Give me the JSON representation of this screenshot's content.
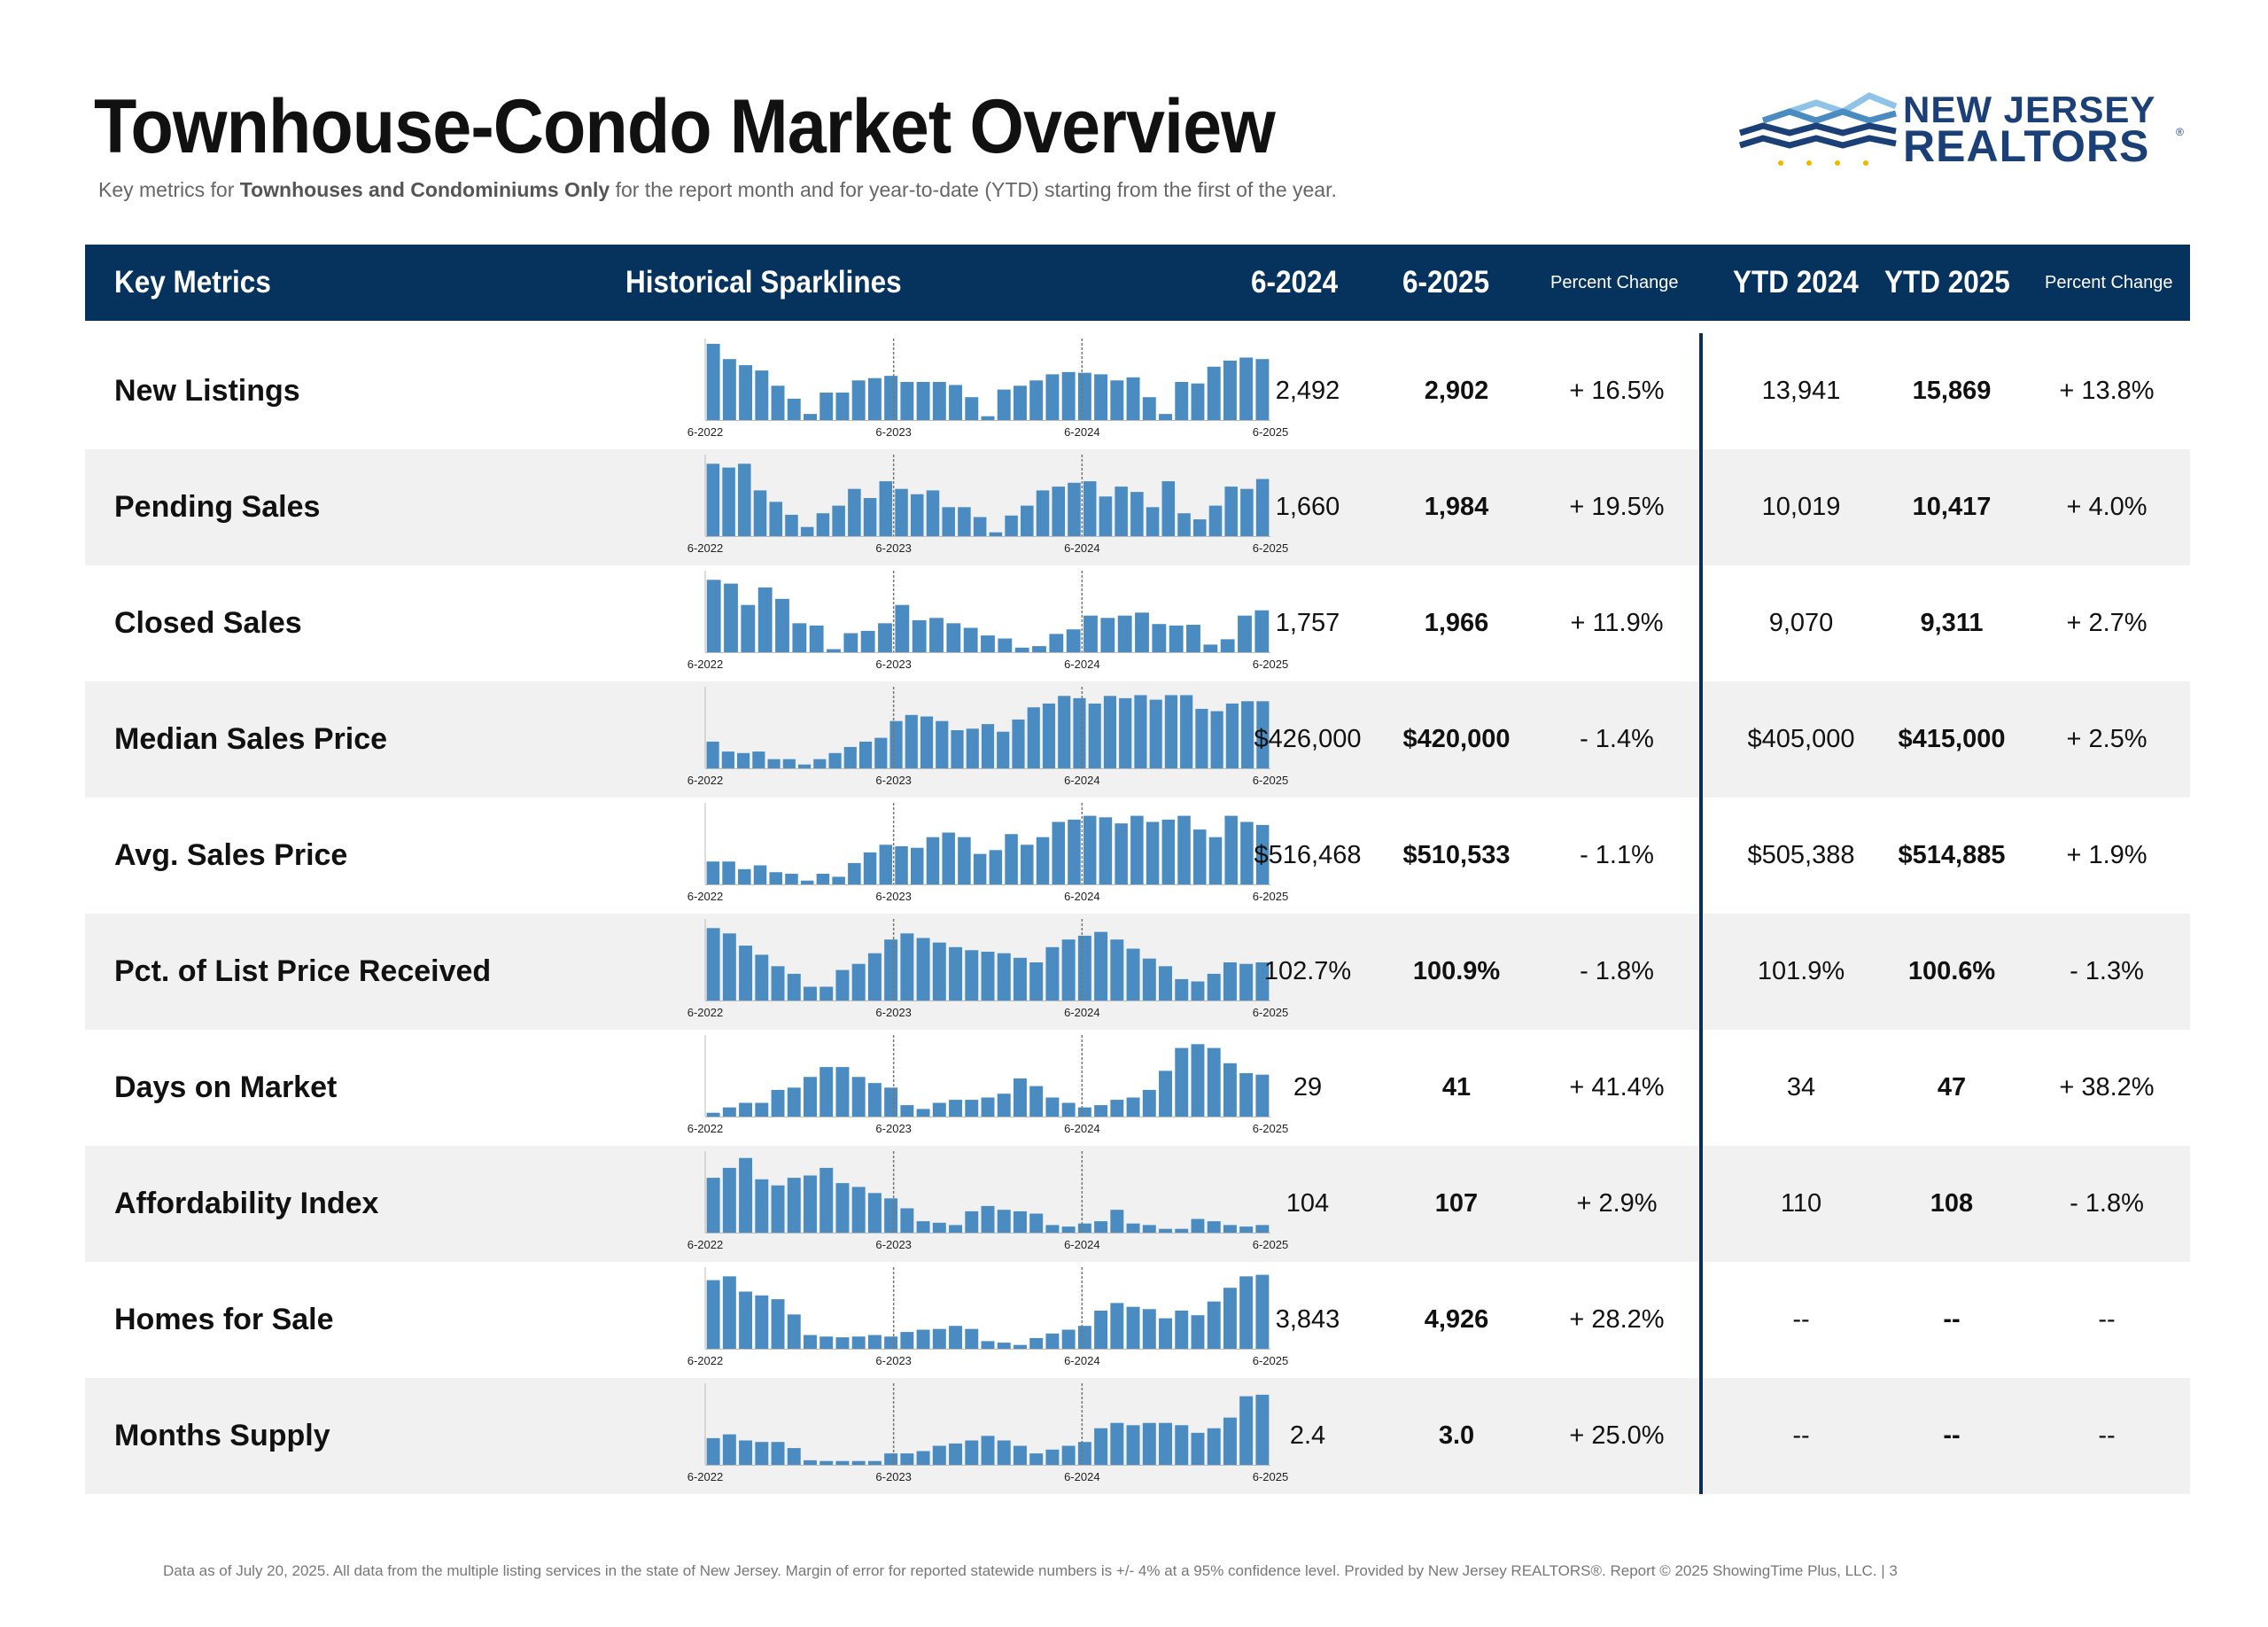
{
  "title": "Townhouse-Condo Market Overview",
  "subtitle": {
    "pre": "Key metrics for ",
    "bold": "Townhouses and Condominiums Only",
    "post": " for the report month and for year-to-date (YTD) starting from the first of the year."
  },
  "logo": {
    "line1": "NEW JERSEY",
    "line2": "REALTORS",
    "reg": "®"
  },
  "colors": {
    "header_bg": "#06325e",
    "bar": "#4a8cc2",
    "row_shade": "#f1f1f1",
    "divider": "#0d2f57"
  },
  "header": {
    "key_metrics": "Key Metrics",
    "sparklines": "Historical Sparklines",
    "m_2024": "6-2024",
    "m_2025": "6-2025",
    "pct_change": "Percent Change",
    "ytd_2024": "YTD 2024",
    "ytd_2025": "YTD 2025",
    "ytd_pct_change": "Percent Change"
  },
  "rows": [
    {
      "name": "New Listings",
      "m2024": "2,492",
      "m2025": "2,902",
      "pct": "+ 16.5%",
      "ytd2024": "13,941",
      "ytd2025": "15,869",
      "ytd_pct": "+ 13.8%"
    },
    {
      "name": "Pending Sales",
      "m2024": "1,660",
      "m2025": "1,984",
      "pct": "+ 19.5%",
      "ytd2024": "10,019",
      "ytd2025": "10,417",
      "ytd_pct": "+ 4.0%"
    },
    {
      "name": "Closed Sales",
      "m2024": "1,757",
      "m2025": "1,966",
      "pct": "+ 11.9%",
      "ytd2024": "9,070",
      "ytd2025": "9,311",
      "ytd_pct": "+ 2.7%"
    },
    {
      "name": "Median Sales Price",
      "m2024": "$426,000",
      "m2025": "$420,000",
      "pct": "- 1.4%",
      "ytd2024": "$405,000",
      "ytd2025": "$415,000",
      "ytd_pct": "+ 2.5%"
    },
    {
      "name": "Avg. Sales Price",
      "m2024": "$516,468",
      "m2025": "$510,533",
      "pct": "- 1.1%",
      "ytd2024": "$505,388",
      "ytd2025": "$514,885",
      "ytd_pct": "+ 1.9%"
    },
    {
      "name": "Pct. of List Price Received",
      "m2024": "102.7%",
      "m2025": "100.9%",
      "pct": "- 1.8%",
      "ytd2024": "101.9%",
      "ytd2025": "100.6%",
      "ytd_pct": "- 1.3%"
    },
    {
      "name": "Days on Market",
      "m2024": "29",
      "m2025": "41",
      "pct": "+ 41.4%",
      "ytd2024": "34",
      "ytd2025": "47",
      "ytd_pct": "+ 38.2%"
    },
    {
      "name": "Affordability Index",
      "m2024": "104",
      "m2025": "107",
      "pct": "+ 2.9%",
      "ytd2024": "110",
      "ytd2025": "108",
      "ytd_pct": "- 1.8%"
    },
    {
      "name": "Homes for Sale",
      "m2024": "3,843",
      "m2025": "4,926",
      "pct": "+ 28.2%",
      "ytd2024": "--",
      "ytd2025": "--",
      "ytd_pct": "--"
    },
    {
      "name": "Months Supply",
      "m2024": "2.4",
      "m2025": "3.0",
      "pct": "+ 25.0%",
      "ytd2024": "--",
      "ytd2025": "--",
      "ytd_pct": "--"
    }
  ],
  "chart_data": {
    "type": "bar",
    "description_note": "",
    "x_tick_labels": [
      "6-2022",
      "6-2023",
      "6-2024",
      "6-2025"
    ],
    "series": [
      {
        "name": "New Listings",
        "values": [
          100,
          80,
          72,
          65,
          45,
          28,
          8,
          36,
          36,
          52,
          55,
          58,
          50,
          50,
          50,
          46,
          30,
          5,
          40,
          45,
          52,
          60,
          63,
          62,
          60,
          52,
          56,
          30,
          8,
          50,
          48,
          70,
          78,
          82,
          80
        ]
      },
      {
        "name": "Pending Sales",
        "values": [
          95,
          90,
          95,
          60,
          45,
          28,
          12,
          30,
          40,
          62,
          50,
          72,
          62,
          55,
          60,
          38,
          38,
          25,
          5,
          27,
          40,
          60,
          65,
          70,
          72,
          52,
          65,
          58,
          38,
          72,
          30,
          22,
          40,
          65,
          62,
          75
        ]
      },
      {
        "name": "Closed Sales",
        "values": [
          95,
          90,
          62,
          85,
          70,
          38,
          35,
          4,
          25,
          28,
          38,
          62,
          42,
          45,
          38,
          32,
          22,
          18,
          6,
          8,
          24,
          30,
          48,
          45,
          48,
          52,
          37,
          35,
          36,
          10,
          17,
          48,
          55
        ]
      },
      {
        "name": "Median Sales Price",
        "values": [
          35,
          22,
          20,
          22,
          12,
          12,
          5,
          12,
          20,
          28,
          35,
          40,
          62,
          70,
          68,
          62,
          50,
          52,
          58,
          48,
          64,
          80,
          85,
          95,
          92,
          85,
          95,
          92,
          96,
          90,
          96,
          96,
          78,
          75,
          85,
          88,
          88
        ]
      },
      {
        "name": "Avg. Sales Price",
        "values": [
          30,
          30,
          20,
          25,
          16,
          14,
          5,
          14,
          10,
          28,
          42,
          52,
          50,
          48,
          62,
          68,
          62,
          40,
          45,
          66,
          52,
          62,
          82,
          85,
          90,
          88,
          80,
          90,
          82,
          85,
          90,
          72,
          62,
          90,
          82,
          78
        ]
      },
      {
        "name": "Pct. of List Price Received",
        "values": [
          95,
          88,
          72,
          60,
          45,
          35,
          18,
          18,
          40,
          48,
          62,
          80,
          88,
          82,
          76,
          70,
          66,
          64,
          62,
          56,
          50,
          70,
          80,
          85,
          90,
          80,
          68,
          55,
          45,
          28,
          25,
          35,
          50,
          48,
          50
        ]
      },
      {
        "name": "Days on Market",
        "values": [
          5,
          12,
          18,
          18,
          35,
          38,
          52,
          65,
          65,
          52,
          44,
          38,
          15,
          10,
          18,
          22,
          22,
          25,
          30,
          50,
          40,
          25,
          18,
          12,
          15,
          22,
          25,
          35,
          60,
          90,
          95,
          90,
          70,
          57,
          55
        ]
      },
      {
        "name": "Affordability Index",
        "values": [
          72,
          85,
          98,
          70,
          62,
          72,
          75,
          85,
          65,
          60,
          52,
          45,
          32,
          15,
          13,
          10,
          28,
          35,
          30,
          28,
          25,
          10,
          8,
          12,
          15,
          30,
          12,
          10,
          5,
          5,
          18,
          15,
          10,
          8,
          10
        ]
      },
      {
        "name": "Homes for Sale",
        "values": [
          90,
          95,
          75,
          70,
          65,
          45,
          18,
          16,
          15,
          16,
          18,
          16,
          22,
          25,
          26,
          30,
          26,
          10,
          8,
          5,
          14,
          20,
          25,
          30,
          50,
          60,
          55,
          52,
          40,
          50,
          44,
          62,
          80,
          95,
          97
        ]
      },
      {
        "name": "Months Supply",
        "values": [
          35,
          40,
          32,
          30,
          30,
          22,
          6,
          5,
          5,
          5,
          5,
          15,
          15,
          18,
          25,
          28,
          32,
          38,
          32,
          25,
          15,
          20,
          25,
          30,
          48,
          55,
          52,
          55,
          55,
          52,
          42,
          48,
          62,
          90,
          92
        ]
      }
    ]
  },
  "footer": "Data as of July 20, 2025. All data from the multiple listing services in the state of New Jersey. Margin of error for reported statewide numbers is +/- 4% at a 95% confidence level. Provided by New Jersey REALTORS®. Report © 2025 ShowingTime Plus, LLC. | 3"
}
